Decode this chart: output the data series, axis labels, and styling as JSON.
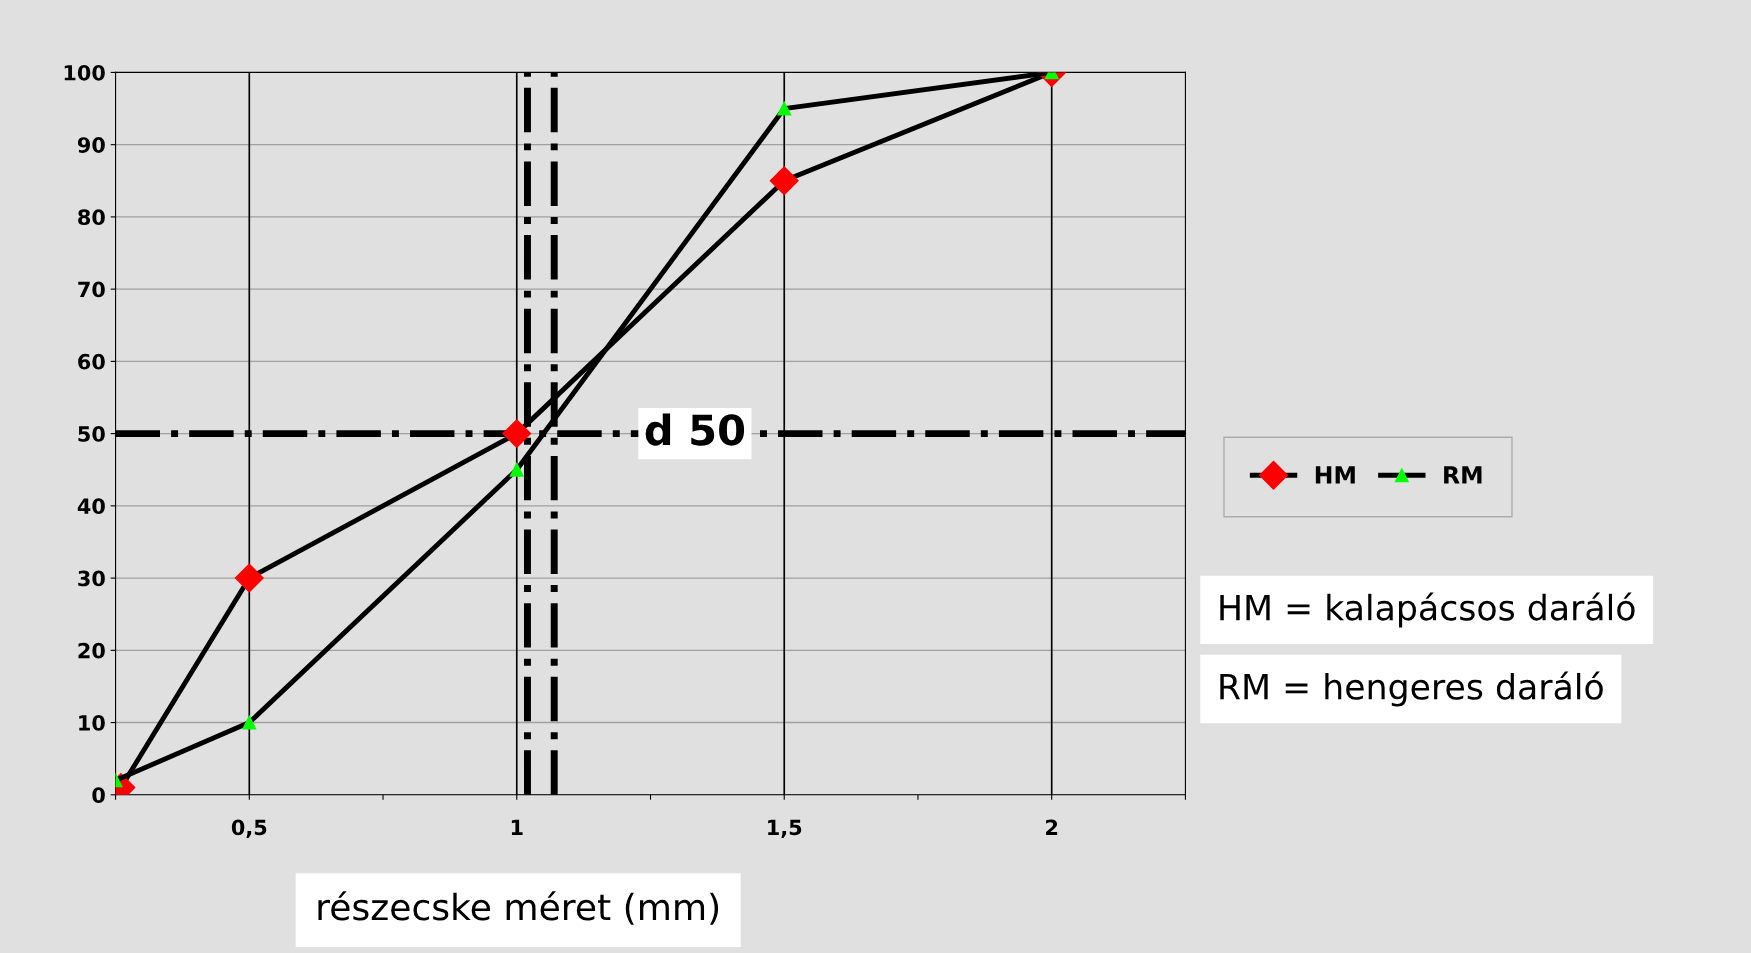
{
  "chart_data": {
    "type": "line",
    "xlabel": "részecske méret (mm)",
    "xlim": [
      0.25,
      2.25
    ],
    "xticks": [
      {
        "value": 0.25,
        "label": null
      },
      {
        "value": 0.5,
        "label": "0,5"
      },
      {
        "value": 0.75,
        "label": null
      },
      1,
      {
        "value": 1.25,
        "label": null
      },
      {
        "value": 1.5,
        "label": "1,5"
      },
      {
        "value": 1.75,
        "label": null
      },
      2,
      {
        "value": 2.25,
        "label": null
      }
    ],
    "ylim": [
      0,
      100
    ],
    "yticks": [
      0,
      10,
      20,
      30,
      40,
      50,
      60,
      70,
      80,
      90,
      100
    ],
    "grid": "y",
    "legend": "right",
    "series": [
      {
        "name": "HM",
        "color": "#ff0000",
        "marker": "diamond",
        "x": [
          0.26,
          0.5,
          1,
          1.5,
          2
        ],
        "values": [
          1,
          30,
          50,
          85,
          100
        ]
      },
      {
        "name": "RM",
        "color": "#00ff00",
        "marker": "triangle",
        "x": [
          0.25,
          0.5,
          1,
          1.5,
          2
        ],
        "values": [
          2,
          10,
          45,
          95,
          100
        ]
      }
    ],
    "ref_lines": [
      {
        "axis": "y",
        "value": 50,
        "label": "d 50",
        "line_style": "dashdot",
        "color": "#000000"
      },
      {
        "axis": "x",
        "value": 1.02,
        "label": null,
        "line_style": "dashdot",
        "color": "#000000"
      },
      {
        "axis": "x",
        "value": 1.07,
        "label": null,
        "line_style": "dashdot",
        "color": "#000000"
      },
      {
        "axis": "x",
        "value": 0.5,
        "label": null,
        "line_style": "solid",
        "color": "#000000"
      },
      {
        "axis": "x",
        "value": 1,
        "label": null,
        "line_style": "solid",
        "color": "#000000"
      },
      {
        "axis": "x",
        "value": 1.5,
        "label": null,
        "line_style": "solid",
        "color": "#000000"
      },
      {
        "axis": "x",
        "value": 2,
        "label": null,
        "line_style": "solid",
        "color": "#000000"
      }
    ],
    "annotations": [
      "HM = kalapácsos daráló",
      "RM = hengeres daráló"
    ]
  }
}
